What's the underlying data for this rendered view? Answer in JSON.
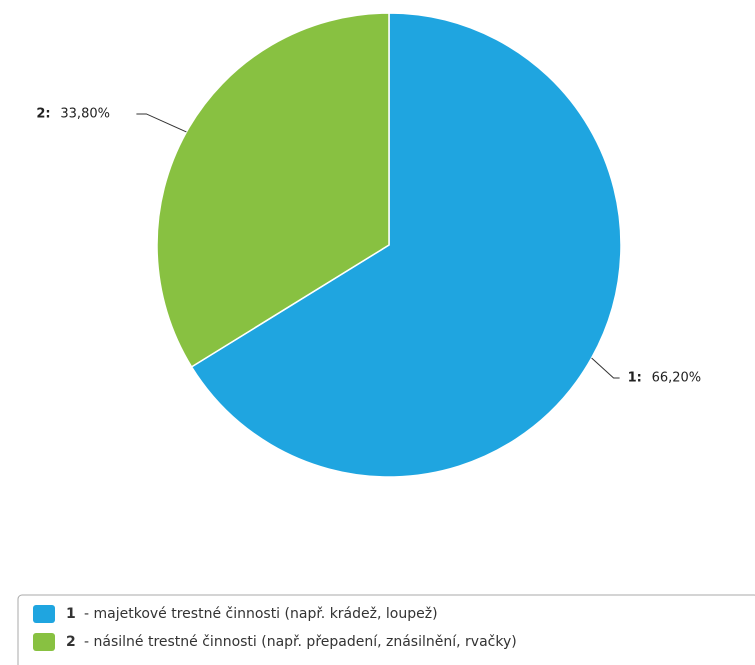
{
  "chart_data": {
    "type": "pie",
    "categories": [
      "1",
      "2"
    ],
    "slice_labels": [
      "1:",
      "2:"
    ],
    "values": [
      66.2,
      33.8
    ],
    "value_labels": [
      "66,20%",
      "33,80%"
    ],
    "colors": [
      "#1fa5e0",
      "#88c141"
    ],
    "legend_texts": [
      "- majetkové trestné činnosti (např. krádež, loupež)",
      "- násilné trestné činnosti (např. přepadení, znásilnění, rvačky)"
    ]
  }
}
